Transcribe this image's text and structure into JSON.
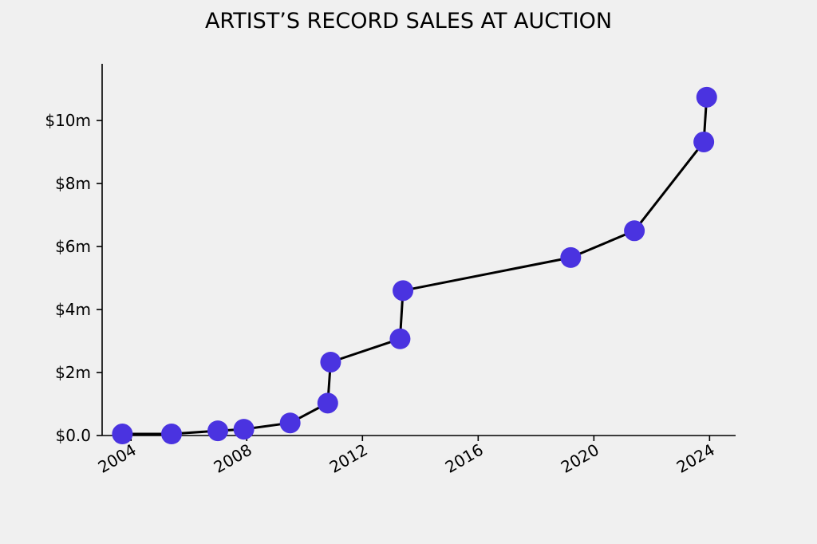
{
  "chart_data": {
    "type": "line",
    "title": "ARTIST’S RECORD SALES AT AUCTION",
    "xlabel": "",
    "ylabel": "",
    "x_ticks": [
      {
        "value": 2004,
        "label": "2004"
      },
      {
        "value": 2008,
        "label": "2008"
      },
      {
        "value": 2012,
        "label": "2012"
      },
      {
        "value": 2016,
        "label": "2016"
      },
      {
        "value": 2020,
        "label": "2020"
      },
      {
        "value": 2024,
        "label": "2024"
      }
    ],
    "y_ticks": [
      {
        "value": 0,
        "label": "$0.0"
      },
      {
        "value": 2,
        "label": "$2m"
      },
      {
        "value": 4,
        "label": "$4m"
      },
      {
        "value": 6,
        "label": "$6m"
      },
      {
        "value": 8,
        "label": "$8m"
      },
      {
        "value": 10,
        "label": "$10m"
      }
    ],
    "xlim": [
      2003.0,
      2024.9
    ],
    "ylim": [
      0,
      11.8
    ],
    "grid": false,
    "legend": "none",
    "line_color": "#000000",
    "marker_color": "#4a33e0",
    "series": [
      {
        "x": [
          2003.7,
          2005.4,
          2007.0,
          2007.9,
          2009.5,
          2010.8,
          2010.9,
          2013.3,
          2013.4,
          2019.2,
          2021.4,
          2023.8,
          2023.9
        ],
        "y": [
          0.05,
          0.05,
          0.15,
          0.2,
          0.4,
          1.03,
          2.33,
          3.07,
          4.6,
          5.65,
          6.5,
          9.32,
          10.74
        ]
      }
    ]
  }
}
